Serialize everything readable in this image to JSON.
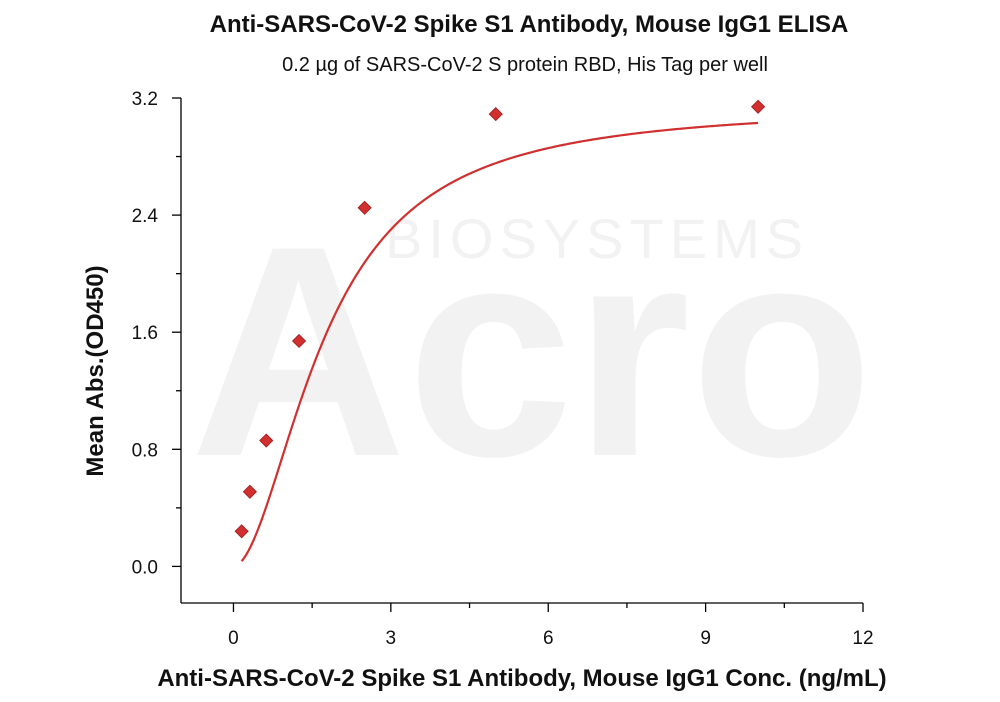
{
  "chart_data": {
    "type": "scatter",
    "title": "Anti-SARS-CoV-2 Spike S1 Antibody, Mouse IgG1 ELISA",
    "subtitle": "0.2 µg of SARS-CoV-2 S protein RBD, His Tag per well",
    "xlabel": "Anti-SARS-CoV-2 Spike S1 Antibody, Mouse IgG1 Conc. (ng/mL)",
    "ylabel": "Mean Abs.(OD450)",
    "xlim": [
      -1,
      12
    ],
    "ylim": [
      -0.25,
      3.2
    ],
    "xticks": [
      "0",
      "3",
      "6",
      "9",
      "12"
    ],
    "yticks": [
      "0.0",
      "0.8",
      "1.6",
      "2.4",
      "3.2"
    ],
    "grid": false,
    "series": [
      {
        "x": [
          0.156,
          0.313,
          0.625,
          1.25,
          2.5,
          5,
          10
        ],
        "y": [
          0.24,
          0.51,
          0.86,
          1.54,
          2.45,
          3.09,
          3.14
        ],
        "marker": "diamond",
        "fit": "4-parameter logistic curve",
        "color": "#d0302f"
      }
    ],
    "watermark": [
      "Acro",
      "BIOSYSTEMS"
    ]
  }
}
